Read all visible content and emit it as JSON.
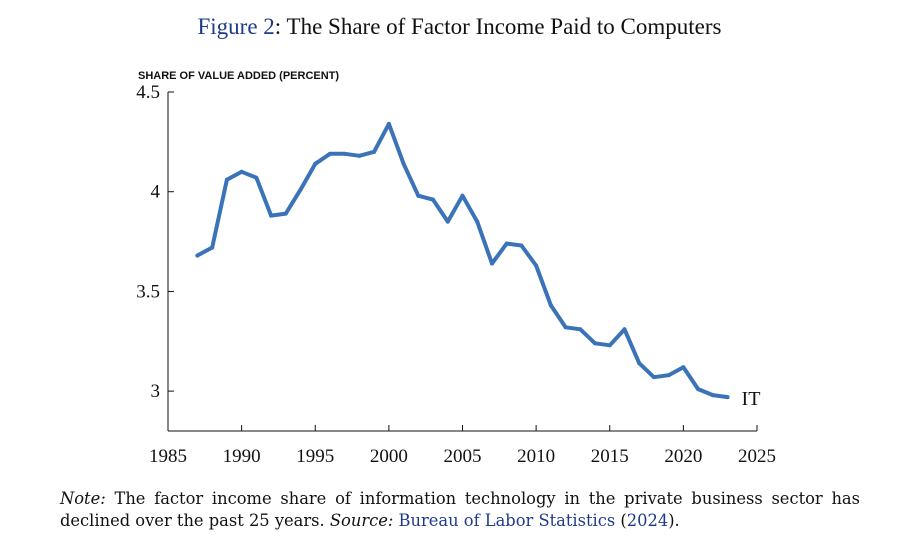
{
  "figure": {
    "label": "Figure 2",
    "title_text": ": The Share of Factor Income Paid to Computers"
  },
  "note": {
    "label": "Note:",
    "text": " The factor income share of information technology in the private business sector has declined over the past 25 years. ",
    "source_label": "Source:",
    "source_name": "Bureau of Labor Statistics",
    "source_year_open": " (",
    "source_year": "2024",
    "source_year_close": ")."
  },
  "colors": {
    "line": "#3a73b8",
    "axis": "#111111",
    "link": "#1f3a8a"
  },
  "chart_data": {
    "type": "line",
    "title": "The Share of Factor Income Paid to Computers",
    "ylabel": "SHARE OF VALUE ADDED (PERCENT)",
    "xlabel": "",
    "xlim": [
      1985,
      2025
    ],
    "ylim": [
      2.8,
      4.5
    ],
    "x_ticks": [
      1985,
      1990,
      1995,
      2000,
      2005,
      2010,
      2015,
      2020,
      2025
    ],
    "y_ticks": [
      {
        "value": 3,
        "label": "3"
      },
      {
        "value": 3.5,
        "label": "3.5"
      },
      {
        "value": 4,
        "label": "4"
      },
      {
        "value": 4.5,
        "label": "4.5"
      }
    ],
    "grid": false,
    "series": [
      {
        "name": "IT",
        "x": [
          1987,
          1988,
          1989,
          1990,
          1991,
          1992,
          1993,
          1994,
          1995,
          1996,
          1997,
          1998,
          1999,
          2000,
          2001,
          2002,
          2003,
          2004,
          2005,
          2006,
          2007,
          2008,
          2009,
          2010,
          2011,
          2012,
          2013,
          2014,
          2015,
          2016,
          2017,
          2018,
          2019,
          2020,
          2021,
          2022,
          2023
        ],
        "y": [
          3.68,
          3.72,
          4.06,
          4.1,
          4.07,
          3.88,
          3.89,
          4.01,
          4.14,
          4.19,
          4.19,
          4.18,
          4.2,
          4.34,
          4.14,
          3.98,
          3.96,
          3.85,
          3.98,
          3.85,
          3.64,
          3.74,
          3.73,
          3.63,
          3.43,
          3.32,
          3.31,
          3.24,
          3.23,
          3.31,
          3.14,
          3.07,
          3.08,
          3.12,
          3.01,
          2.98,
          2.97
        ]
      }
    ]
  }
}
